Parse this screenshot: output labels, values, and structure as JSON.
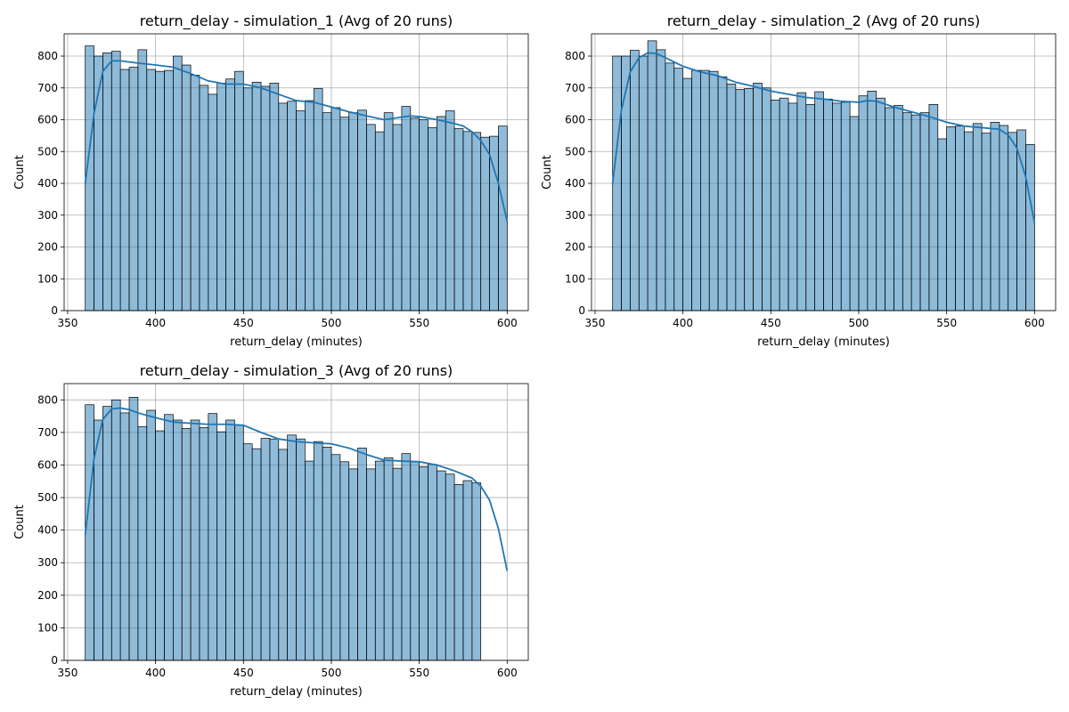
{
  "chart_data": [
    {
      "type": "bar",
      "title": "return_delay - simulation_1 (Avg of 20 runs)",
      "xlabel": "return_delay (minutes)",
      "ylabel": "Count",
      "xlim": [
        348,
        612
      ],
      "ylim": [
        0,
        870
      ],
      "xticks": [
        350,
        400,
        450,
        500,
        550,
        600
      ],
      "yticks": [
        0,
        100,
        200,
        300,
        400,
        500,
        600,
        700,
        800
      ],
      "grid": true,
      "bin_start": 360,
      "bin_width": 5,
      "counts": [
        832,
        800,
        810,
        815,
        758,
        765,
        820,
        758,
        752,
        755,
        800,
        772,
        740,
        708,
        680,
        715,
        728,
        752,
        700,
        718,
        705,
        715,
        652,
        658,
        628,
        660,
        698,
        622,
        638,
        608,
        622,
        630,
        585,
        562,
        622,
        585,
        642,
        605,
        600,
        575,
        610,
        628,
        572,
        563,
        560,
        545,
        548,
        580
      ],
      "kde": {
        "x": [
          360,
          365,
          370,
          375,
          380,
          390,
          400,
          410,
          420,
          430,
          440,
          450,
          460,
          470,
          480,
          490,
          500,
          510,
          520,
          530,
          540,
          545,
          550,
          560,
          570,
          575,
          580,
          585,
          590,
          595,
          600
        ],
        "y": [
          400,
          620,
          752,
          785,
          785,
          778,
          772,
          765,
          745,
          722,
          712,
          712,
          700,
          680,
          660,
          655,
          640,
          625,
          612,
          600,
          608,
          612,
          610,
          600,
          588,
          580,
          562,
          535,
          490,
          400,
          280
        ]
      },
      "color": "#1f77b4"
    },
    {
      "type": "bar",
      "title": "return_delay - simulation_2 (Avg of 20 runs)",
      "xlabel": "return_delay (minutes)",
      "ylabel": "Count",
      "xlim": [
        348,
        612
      ],
      "ylim": [
        0,
        870
      ],
      "xticks": [
        350,
        400,
        450,
        500,
        550,
        600
      ],
      "yticks": [
        0,
        100,
        200,
        300,
        400,
        500,
        600,
        700,
        800
      ],
      "grid": true,
      "bin_start": 360,
      "bin_width": 5,
      "counts": [
        800,
        800,
        818,
        800,
        848,
        820,
        778,
        762,
        730,
        755,
        755,
        752,
        735,
        712,
        695,
        698,
        715,
        700,
        662,
        668,
        652,
        685,
        648,
        688,
        665,
        652,
        655,
        610,
        675,
        690,
        668,
        638,
        645,
        622,
        615,
        622,
        648,
        540,
        578,
        580,
        562,
        588,
        558,
        592,
        582,
        560,
        568,
        522
      ],
      "kde": {
        "x": [
          360,
          365,
          370,
          375,
          380,
          385,
          390,
          400,
          410,
          420,
          430,
          440,
          450,
          460,
          470,
          480,
          490,
          500,
          505,
          510,
          520,
          530,
          540,
          550,
          560,
          570,
          580,
          585,
          590,
          595,
          600
        ],
        "y": [
          400,
          630,
          750,
          795,
          810,
          808,
          795,
          768,
          750,
          738,
          718,
          705,
          690,
          680,
          670,
          665,
          658,
          655,
          660,
          658,
          640,
          625,
          610,
          592,
          580,
          575,
          570,
          552,
          510,
          420,
          275
        ]
      },
      "color": "#1f77b4"
    },
    {
      "type": "bar",
      "title": "return_delay - simulation_3 (Avg of 20 runs)",
      "xlabel": "return_delay (minutes)",
      "ylabel": "Count",
      "xlim": [
        348,
        612
      ],
      "ylim": [
        0,
        850
      ],
      "xticks": [
        350,
        400,
        450,
        500,
        550,
        600
      ],
      "yticks": [
        0,
        100,
        200,
        300,
        400,
        500,
        600,
        700,
        800
      ],
      "grid": true,
      "bin_start": 360,
      "bin_width": 5,
      "counts": [
        785,
        738,
        780,
        800,
        760,
        808,
        718,
        768,
        705,
        755,
        738,
        712,
        738,
        715,
        758,
        702,
        738,
        722,
        665,
        650,
        682,
        680,
        648,
        692,
        680,
        612,
        672,
        655,
        632,
        610,
        588,
        652,
        588,
        612,
        622,
        590,
        635,
        610,
        595,
        602,
        582,
        572,
        540,
        552,
        545
      ],
      "kde": {
        "x": [
          360,
          365,
          370,
          375,
          380,
          385,
          390,
          400,
          410,
          420,
          430,
          440,
          450,
          460,
          470,
          480,
          490,
          500,
          510,
          520,
          530,
          540,
          550,
          560,
          570,
          580,
          585,
          590,
          595,
          600
        ],
        "y": [
          385,
          620,
          740,
          772,
          775,
          770,
          760,
          745,
          732,
          728,
          725,
          725,
          722,
          700,
          680,
          672,
          668,
          665,
          652,
          632,
          615,
          612,
          610,
          600,
          582,
          560,
          535,
          492,
          405,
          275
        ]
      },
      "color": "#1f77b4"
    }
  ]
}
